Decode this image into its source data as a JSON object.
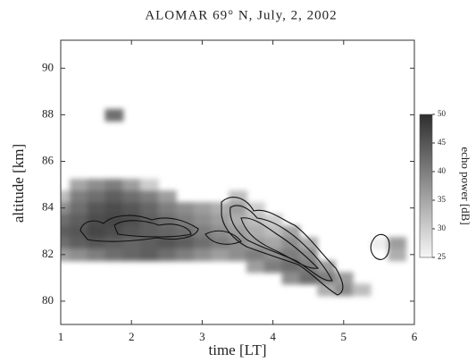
{
  "chart_data": {
    "type": "heatmap",
    "title": "ALOMAR 69° N, July, 2, 2002",
    "xlabel": "time [LT]",
    "ylabel": "altitude [km]",
    "xlim": [
      1,
      6
    ],
    "xticks": [
      1,
      2,
      3,
      4,
      5,
      6
    ],
    "ylim": [
      79,
      91.2
    ],
    "yticks": [
      80,
      82,
      84,
      86,
      88,
      90
    ],
    "colorbar_label": "echo power [dB]",
    "clim": [
      25,
      50
    ],
    "cticks": [
      25,
      30,
      35,
      40,
      45,
      50
    ],
    "cmap": [
      "#f6f6f6",
      "#2e2e2e"
    ],
    "x": [
      1.25,
      1.5,
      1.75,
      2.0,
      2.25,
      1.0,
      1.25,
      1.5,
      1.75,
      2.0,
      2.25,
      2.5,
      3.5,
      1.0,
      1.25,
      1.5,
      1.75,
      2.0,
      2.25,
      2.5,
      2.75,
      3.0,
      3.25,
      3.5,
      3.75,
      1.0,
      1.25,
      1.5,
      1.75,
      2.0,
      2.25,
      2.5,
      2.75,
      3.0,
      3.25,
      3.5,
      3.75,
      4.0,
      1.0,
      1.25,
      1.5,
      1.75,
      2.0,
      2.25,
      2.5,
      2.75,
      3.0,
      3.25,
      3.5,
      3.75,
      4.0,
      4.25,
      1.0,
      1.25,
      1.5,
      1.75,
      2.0,
      2.25,
      2.5,
      2.75,
      3.0,
      3.25,
      3.5,
      3.75,
      4.0,
      4.25,
      4.5,
      5.5,
      5.75,
      1.0,
      1.25,
      1.5,
      1.75,
      2.0,
      2.25,
      2.5,
      2.75,
      3.0,
      3.25,
      3.5,
      3.75,
      4.0,
      4.25,
      4.5,
      5.75,
      3.75,
      4.0,
      4.25,
      4.5,
      4.75,
      4.25,
      4.5,
      4.75,
      5.0,
      4.75,
      5.0,
      5.25,
      1.75
    ],
    "y": [
      85,
      85,
      85,
      85,
      85,
      84.5,
      84.5,
      84.5,
      84.5,
      84.5,
      84.5,
      84.5,
      84.5,
      84,
      84,
      84,
      84,
      84,
      84,
      84,
      84,
      84,
      84,
      84,
      84,
      83.5,
      83.5,
      83.5,
      83.5,
      83.5,
      83.5,
      83.5,
      83.5,
      83.5,
      83.5,
      83.5,
      83.5,
      83.5,
      83,
      83,
      83,
      83,
      83,
      83,
      83,
      83,
      83,
      83,
      83,
      83,
      83,
      83,
      82.5,
      82.5,
      82.5,
      82.5,
      82.5,
      82.5,
      82.5,
      82.5,
      82.5,
      82.5,
      82.5,
      82.5,
      82.5,
      82.5,
      82.5,
      82.5,
      82.5,
      82,
      82,
      82,
      82,
      82,
      82,
      82,
      82,
      82,
      82,
      82,
      82,
      82,
      82,
      82,
      82,
      81.5,
      81.5,
      81.5,
      81.5,
      81.5,
      81,
      81,
      81,
      81,
      80.5,
      80.5,
      80.5,
      88
    ],
    "values": [
      35,
      38,
      40,
      36,
      30,
      32,
      40,
      42,
      44,
      42,
      40,
      36,
      32,
      38,
      42,
      45,
      46,
      45,
      43,
      40,
      38,
      36,
      34,
      36,
      30,
      42,
      44,
      46,
      47,
      46,
      44,
      42,
      40,
      38,
      36,
      34,
      32,
      30,
      44,
      45,
      47,
      46,
      45,
      44,
      43,
      42,
      40,
      38,
      36,
      34,
      32,
      35,
      42,
      44,
      45,
      44,
      43,
      44,
      45,
      44,
      42,
      40,
      38,
      36,
      35,
      38,
      34,
      26,
      36,
      36,
      38,
      40,
      42,
      43,
      44,
      42,
      40,
      38,
      36,
      38,
      40,
      38,
      40,
      38,
      34,
      36,
      40,
      42,
      40,
      36,
      38,
      42,
      40,
      36,
      34,
      38,
      32,
      42
    ]
  }
}
